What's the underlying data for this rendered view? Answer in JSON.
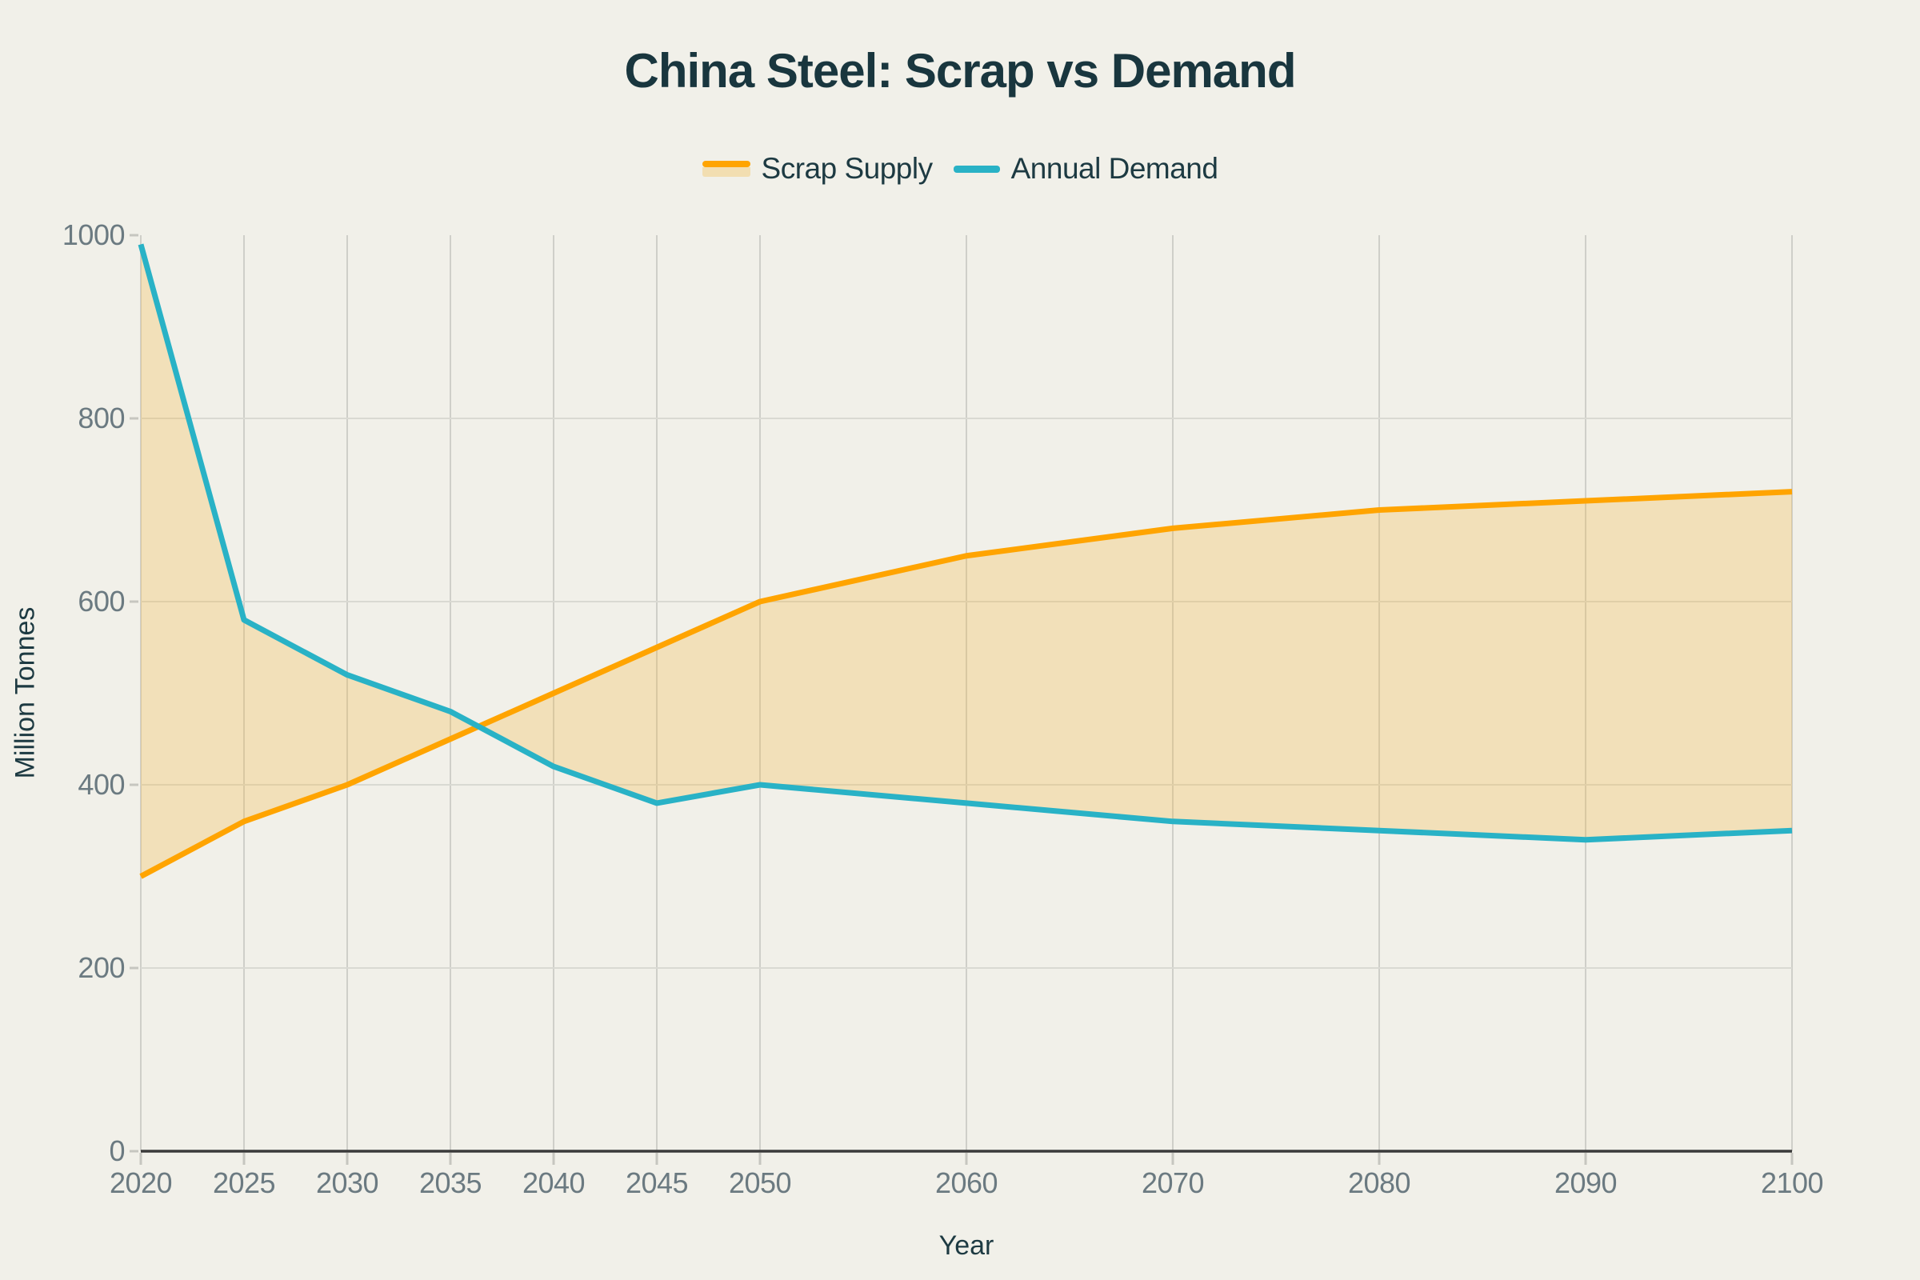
{
  "chart_data": {
    "type": "area",
    "title": "China Steel: Scrap vs Demand",
    "xlabel": "Year",
    "ylabel": "Million Tonnes",
    "x": [
      2020,
      2025,
      2030,
      2035,
      2040,
      2045,
      2050,
      2060,
      2070,
      2080,
      2090,
      2100
    ],
    "series": [
      {
        "name": "Scrap Supply",
        "color": "#ffa400",
        "marker": "line-with-band-fill",
        "values": [
          300,
          360,
          400,
          450,
          500,
          550,
          600,
          650,
          680,
          700,
          710,
          720
        ]
      },
      {
        "name": "Annual Demand",
        "color": "#29b2c6",
        "marker": "line",
        "values": [
          990,
          580,
          520,
          480,
          420,
          380,
          400,
          380,
          360,
          350,
          340,
          350
        ]
      }
    ],
    "band_between_series": true,
    "band_color": "#f6b73c",
    "band_opacity": 0.28,
    "xlim": [
      2020,
      2100
    ],
    "ylim": [
      0,
      1000
    ],
    "x_ticks": [
      2020,
      2025,
      2030,
      2035,
      2040,
      2045,
      2050,
      2060,
      2070,
      2080,
      2090,
      2100
    ],
    "y_ticks": [
      0,
      200,
      400,
      600,
      800,
      1000
    ],
    "grid": {
      "vertical": true,
      "horizontal": true,
      "horizontal_skip": [
        0,
        1000
      ]
    },
    "legend_position": "top-center"
  },
  "style": {
    "background": "#f1f0e9",
    "title_color": "#19363e",
    "text_color": "#1d3a42",
    "tick_label_color": "#6b7a81",
    "vgrid_color": "#cfcfc9",
    "hgrid_color": "#d9d9d2",
    "axis_line_color": "#3a3a3a",
    "tick_mark_color": "#c6c6c0"
  }
}
